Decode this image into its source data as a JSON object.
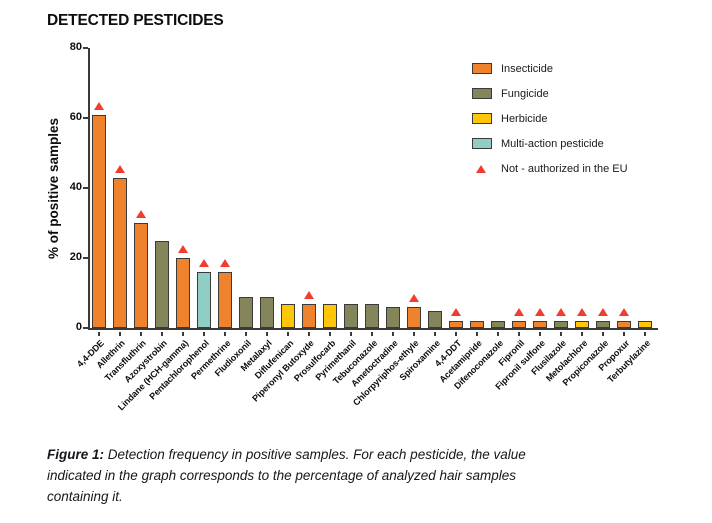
{
  "page_title": "DETECTED PESTICIDES",
  "chart_data": {
    "type": "bar",
    "title": "DETECTED PESTICIDES",
    "ylabel": "% of positive samples",
    "xlabel": "",
    "ylim": [
      0,
      80
    ],
    "yticks": [
      0,
      20,
      40,
      60,
      80
    ],
    "grid": false,
    "legend_position": "top-right",
    "categories": [
      "4,4-DDE",
      "Allethrin",
      "Transfluthrin",
      "Azoxystrobin",
      "Lindane (HCH-gamma)",
      "Pentachlorophenol",
      "Permethrine",
      "Fludioxonil",
      "Metalaxyl",
      "Diflufenican",
      "Piperonyl Butoxyde",
      "Prosulfocarb",
      "Pyrimethanil",
      "Tebuconazole",
      "Ametoctradine",
      "Chlorpyriphos-ethyle",
      "Spiroxamine",
      "4,4-DDT",
      "Acetamipride",
      "Difenoconazole",
      "Fipronil",
      "Fipronil sulfone",
      "Flusilazole",
      "Metolachlore",
      "Propiconazole",
      "Propoxur",
      "Terbutylazine"
    ],
    "values": [
      61,
      43,
      30,
      25,
      20,
      16,
      16,
      9,
      9,
      7,
      7,
      7,
      7,
      7,
      6,
      6,
      5,
      2,
      2,
      2,
      2,
      2,
      2,
      2,
      2,
      2,
      2
    ],
    "types": [
      "insecticide",
      "insecticide",
      "insecticide",
      "fungicide",
      "insecticide",
      "multi_action",
      "insecticide",
      "fungicide",
      "fungicide",
      "herbicide",
      "insecticide",
      "herbicide",
      "fungicide",
      "fungicide",
      "fungicide",
      "insecticide",
      "fungicide",
      "insecticide",
      "insecticide",
      "fungicide",
      "insecticide",
      "insecticide",
      "fungicide",
      "herbicide",
      "fungicide",
      "insecticide",
      "herbicide"
    ],
    "not_authorized_eu": [
      true,
      true,
      true,
      false,
      true,
      true,
      true,
      false,
      false,
      false,
      true,
      false,
      false,
      false,
      false,
      true,
      false,
      true,
      false,
      false,
      true,
      true,
      true,
      true,
      true,
      true,
      false
    ],
    "colors": {
      "insecticide": "#EE822D",
      "fungicide": "#84855A",
      "herbicide": "#FDC608",
      "multi_action": "#90CDC5",
      "not_authorized_marker": "#F23C30",
      "bar_border": "#3A3A3A",
      "axis": "#3A3A3A"
    }
  },
  "legend": {
    "items": [
      {
        "label": "Insecticide",
        "type": "insecticide",
        "shape": "rect"
      },
      {
        "label": "Fungicide",
        "type": "fungicide",
        "shape": "rect"
      },
      {
        "label": "Herbicide",
        "type": "herbicide",
        "shape": "rect"
      },
      {
        "label": "Multi-action pesticide",
        "type": "multi_action",
        "shape": "rect"
      },
      {
        "label": "Not - authorized in the EU",
        "type": "not_authorized_marker",
        "shape": "triangle"
      }
    ]
  },
  "caption": {
    "prefix": "Figure 1:",
    "lines": [
      "Detection frequency in positive samples. For each pesticide, the value",
      "indicated in the graph corresponds to the percentage of analyzed hair samples",
      "containing it."
    ]
  }
}
